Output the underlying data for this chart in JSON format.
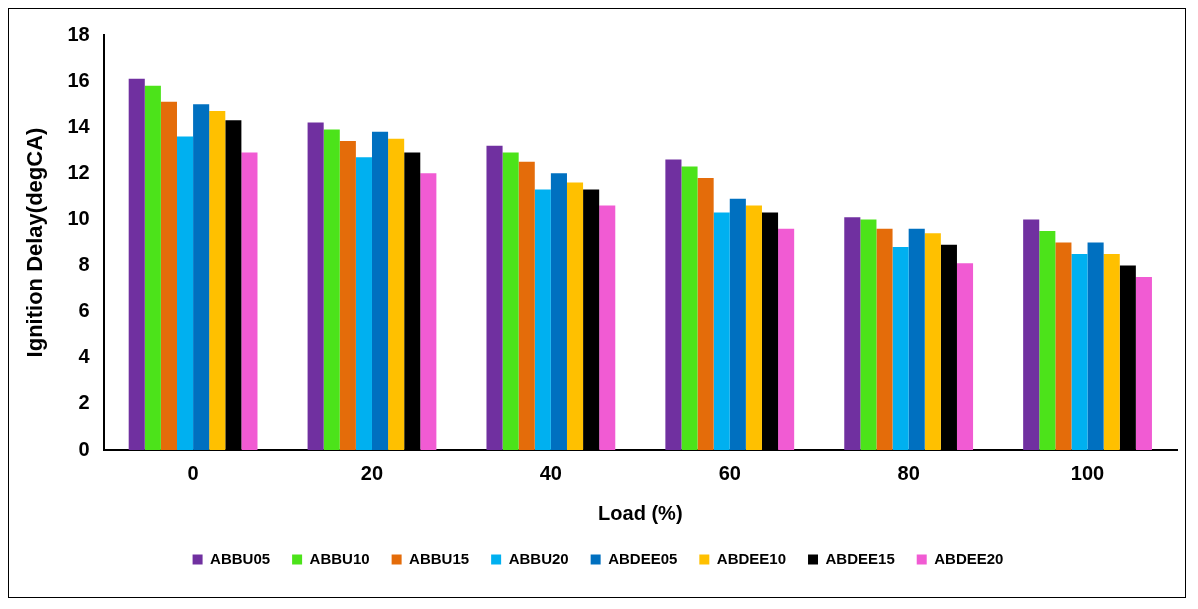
{
  "chart_data": {
    "type": "bar",
    "xlabel": "Load (%)",
    "ylabel": "Ignition Delay(degCA)",
    "categories": [
      "0",
      "20",
      "40",
      "60",
      "80",
      "100"
    ],
    "ylim": [
      0,
      18
    ],
    "yticks": [
      0,
      2,
      4,
      6,
      8,
      10,
      12,
      14,
      16,
      18
    ],
    "grid": false,
    "legend": "bottom",
    "series": [
      {
        "name": "ABBU05",
        "color": "#7030a0",
        "values": [
          16.1,
          14.2,
          13.2,
          12.6,
          10.1,
          10.0
        ]
      },
      {
        "name": "ABBU10",
        "color": "#4ce31a",
        "values": [
          15.8,
          13.9,
          12.9,
          12.3,
          10.0,
          9.5
        ]
      },
      {
        "name": "ABBU15",
        "color": "#e46c0a",
        "values": [
          15.1,
          13.4,
          12.5,
          11.8,
          9.6,
          9.0
        ]
      },
      {
        "name": "ABBU20",
        "color": "#00b0f0",
        "values": [
          13.6,
          12.7,
          11.3,
          10.3,
          8.8,
          8.5
        ]
      },
      {
        "name": "ABDEE05",
        "color": "#0070c0",
        "values": [
          15.0,
          13.8,
          12.0,
          10.9,
          9.6,
          9.0
        ]
      },
      {
        "name": "ABDEE10",
        "color": "#ffc000",
        "values": [
          14.7,
          13.5,
          11.6,
          10.6,
          9.4,
          8.5
        ]
      },
      {
        "name": "ABDEE15",
        "color": "#000000",
        "values": [
          14.3,
          12.9,
          11.3,
          10.3,
          8.9,
          8.0
        ]
      },
      {
        "name": "ABDEE20",
        "color": "#f15bd3",
        "values": [
          12.9,
          12.0,
          10.6,
          9.6,
          8.1,
          7.5
        ]
      }
    ]
  }
}
